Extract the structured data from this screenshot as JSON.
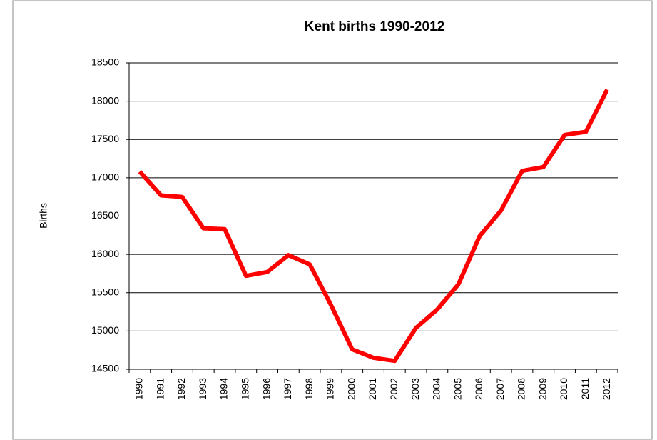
{
  "chart_data": {
    "type": "line",
    "title": "Kent births 1990-2012",
    "y_label": "Births",
    "categories": [
      "1990",
      "1991",
      "1992",
      "1993",
      "1994",
      "1995",
      "1996",
      "1997",
      "1998",
      "1999",
      "2000",
      "2001",
      "2002",
      "2003",
      "2004",
      "2005",
      "2006",
      "2007",
      "2008",
      "2009",
      "2010",
      "2011",
      "2012"
    ],
    "series": [
      {
        "name": "Births",
        "color": "#ff0000",
        "values": [
          17080,
          16770,
          16750,
          16340,
          16330,
          15720,
          15770,
          15990,
          15870,
          15340,
          14760,
          14650,
          14610,
          15040,
          15280,
          15610,
          16240,
          16570,
          17090,
          17140,
          17560,
          17600,
          18150
        ]
      }
    ],
    "ylim": [
      14500,
      18500
    ],
    "yticks": [
      14500,
      15000,
      15500,
      16000,
      16500,
      17000,
      17500,
      18000,
      18500
    ],
    "grid": true
  }
}
